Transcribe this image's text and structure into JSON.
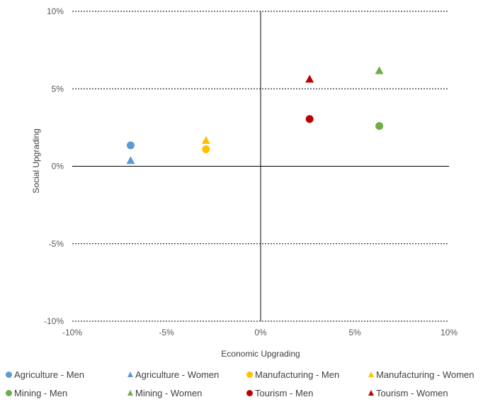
{
  "chart_data": {
    "type": "scatter",
    "xlabel": "Economic Upgrading",
    "ylabel": "Social Upgrading",
    "xlim": [
      -10,
      10
    ],
    "ylim": [
      -10,
      10
    ],
    "x_ticks": [
      "-10%",
      "-5%",
      "0%",
      "5%",
      "10%"
    ],
    "y_ticks": [
      "10%",
      "5%",
      "0%",
      "-5%",
      "-10%"
    ],
    "grid": "horizontal dotted",
    "legend_position": "bottom",
    "series": [
      {
        "name": "Agriculture - Men",
        "marker": "circle",
        "color": "#5B9BD5",
        "x": -6.9,
        "y": 1.35
      },
      {
        "name": "Agriculture - Women",
        "marker": "triangle",
        "color": "#5B9BD5",
        "x": -6.9,
        "y": 0.35
      },
      {
        "name": "Manufacturing - Men",
        "marker": "circle",
        "color": "#FFC000",
        "x": -2.9,
        "y": 1.1
      },
      {
        "name": "Manufacturing - Women",
        "marker": "triangle",
        "color": "#FFC000",
        "x": -2.9,
        "y": 1.65
      },
      {
        "name": "Mining - Men",
        "marker": "circle",
        "color": "#70AD47",
        "x": 6.3,
        "y": 2.6
      },
      {
        "name": "Mining - Women",
        "marker": "triangle",
        "color": "#70AD47",
        "x": 6.3,
        "y": 6.15
      },
      {
        "name": "Tourism - Men",
        "marker": "circle",
        "color": "#C00000",
        "x": 2.6,
        "y": 3.05
      },
      {
        "name": "Tourism - Women",
        "marker": "triangle",
        "color": "#C00000",
        "x": 2.6,
        "y": 5.6
      }
    ]
  }
}
